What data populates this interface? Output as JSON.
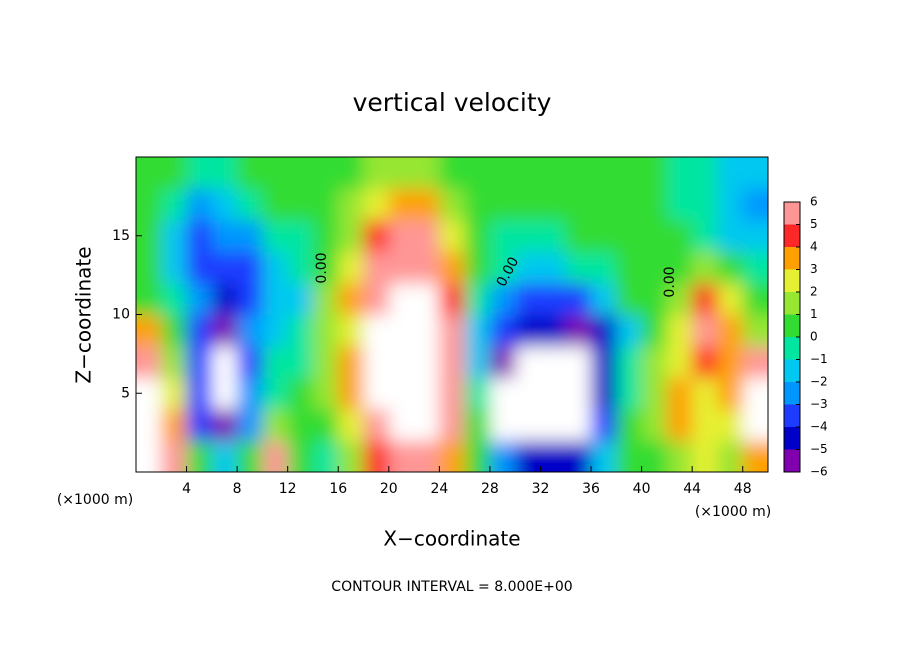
{
  "chart_data": {
    "type": "heatmap",
    "title": "vertical velocity",
    "x_label": "X−coordinate",
    "y_label": "Z−coordinate",
    "x_unit_label": "(×1000 m)",
    "footer": "CONTOUR INTERVAL = 8.000E+00",
    "contour_labels": [
      "0.00",
      "0.00",
      "0.00"
    ],
    "xlim": [
      0,
      50
    ],
    "ylim": [
      0,
      20
    ],
    "xticks": [
      4,
      8,
      12,
      16,
      20,
      24,
      28,
      32,
      36,
      40,
      44,
      48
    ],
    "yticks": [
      5,
      10,
      15
    ],
    "x": [
      1,
      3,
      5,
      7,
      9,
      11,
      13,
      15,
      17,
      19,
      21,
      23,
      25,
      27,
      29,
      31,
      33,
      35,
      37,
      39,
      41,
      43,
      45,
      47,
      49
    ],
    "y": [
      1,
      3,
      5,
      7,
      9,
      11,
      13,
      15,
      17,
      19
    ],
    "z": [
      [
        7,
        5,
        0,
        -2,
        0,
        5,
        0,
        -1,
        1,
        4,
        6,
        6,
        3,
        0,
        -3,
        -5,
        -5,
        -5,
        -2,
        0,
        0,
        1,
        2,
        1,
        3
      ],
      [
        7,
        3,
        -4,
        -6,
        -3,
        1,
        0,
        0,
        2,
        6,
        8,
        8,
        5,
        0,
        -7,
        -8,
        -7,
        -7,
        -4,
        0,
        1,
        3,
        2,
        2,
        7
      ],
      [
        7,
        2,
        -4,
        -7,
        -3,
        -1,
        0,
        1,
        3,
        8,
        10,
        8,
        6,
        -1,
        -7,
        -8,
        -9,
        -8,
        -5,
        -1,
        1,
        3,
        2,
        3,
        7
      ],
      [
        5,
        1,
        -4,
        -7,
        -4,
        -1,
        -1,
        1,
        3,
        7,
        9,
        8,
        6,
        -2,
        -6,
        -7,
        -8,
        -7,
        -5,
        -1,
        1,
        2,
        4,
        3,
        5
      ],
      [
        3,
        0,
        -4,
        -6,
        -3,
        -2,
        -1,
        1,
        2,
        7,
        8,
        7,
        5,
        -2,
        -4,
        -5,
        -5,
        -6,
        -5,
        -2,
        0,
        2,
        5,
        3,
        1
      ],
      [
        0,
        -1,
        -3,
        -5,
        -4,
        -2,
        -2,
        1,
        3,
        6,
        7,
        7,
        4,
        -1,
        -3,
        -4,
        -4,
        -4,
        -2,
        0,
        0,
        1,
        4,
        2,
        0
      ],
      [
        0,
        -2,
        -4,
        -4,
        -4,
        -2,
        -1,
        0,
        2,
        5,
        6,
        6,
        3,
        0,
        -1,
        -2,
        -2,
        -1,
        -1,
        0,
        0,
        0,
        1,
        0,
        -1
      ],
      [
        0,
        -2,
        -4,
        -3,
        -3,
        -1,
        -1,
        0,
        1,
        4,
        5,
        5,
        2,
        0,
        -1,
        -1,
        -1,
        0,
        0,
        0,
        0,
        0,
        -1,
        -2,
        -2
      ],
      [
        0,
        -1,
        -3,
        -2,
        -1,
        0,
        0,
        0,
        1,
        2,
        3,
        3,
        1,
        0,
        0,
        0,
        0,
        0,
        0,
        0,
        0,
        -1,
        -1,
        -2,
        -3
      ],
      [
        0,
        0,
        -1,
        -1,
        0,
        0,
        0,
        0,
        0,
        1,
        1,
        1,
        0,
        0,
        0,
        0,
        0,
        0,
        0,
        0,
        0,
        -1,
        -1,
        -2,
        -2
      ]
    ],
    "colorbar": {
      "ticks": [
        {
          "value": -6,
          "label": "−6"
        },
        {
          "value": -5,
          "label": "−5"
        },
        {
          "value": -4,
          "label": "−4"
        },
        {
          "value": -3,
          "label": "−3"
        },
        {
          "value": -2,
          "label": "−2"
        },
        {
          "value": -1,
          "label": "−1"
        },
        0,
        1,
        2,
        3,
        4,
        5,
        6
      ],
      "colors": [
        "#8000b0",
        "#0000c8",
        "#1e3cff",
        "#0096ff",
        "#00c8f0",
        "#00e6a0",
        "#32dc32",
        "#96e632",
        "#e6f032",
        "#ffa000",
        "#ff2828",
        "#ff9696"
      ],
      "out_of_range_color": "#ffffff"
    }
  }
}
